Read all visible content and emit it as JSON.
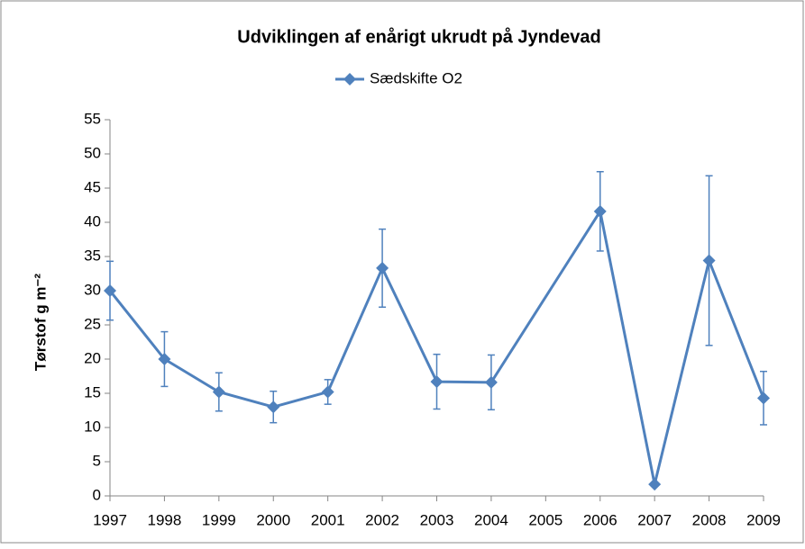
{
  "chart_data": {
    "type": "line",
    "title": "Udviklingen af enårigt ukrudt på Jyndevad",
    "ylabel": "Tørstof g m⁻²",
    "x": [
      1997,
      1998,
      1999,
      2000,
      2001,
      2002,
      2003,
      2004,
      2006,
      2007,
      2008,
      2009
    ],
    "series": [
      {
        "name": "Sædskifte O2",
        "color": "#4f81bd",
        "values": [
          30,
          20,
          15.2,
          13,
          15.2,
          33.3,
          16.7,
          16.6,
          41.6,
          1.7,
          34.4,
          14.3
        ],
        "errors": [
          4.3,
          4,
          2.8,
          2.3,
          1.8,
          5.7,
          4,
          4,
          5.8,
          0,
          12.4,
          3.9
        ]
      }
    ],
    "xlim": [
      1997,
      2009
    ],
    "xticks": [
      1997,
      1998,
      1999,
      2000,
      2001,
      2002,
      2003,
      2004,
      2005,
      2006,
      2007,
      2008,
      2009
    ],
    "ylim": [
      0,
      55
    ],
    "yticks": [
      0,
      5,
      10,
      15,
      20,
      25,
      30,
      35,
      40,
      45,
      50,
      55
    ],
    "grid": false,
    "legend": "top"
  }
}
